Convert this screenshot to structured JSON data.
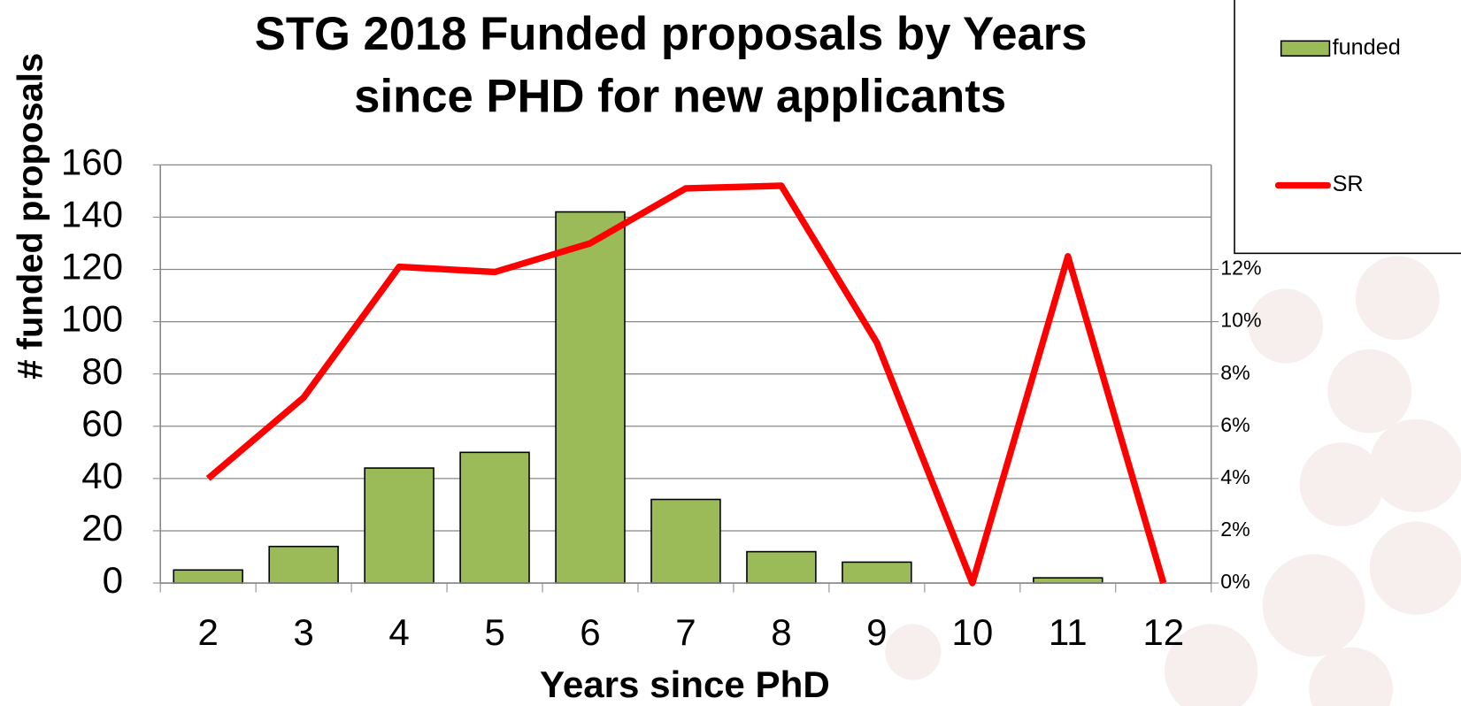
{
  "chart_data": {
    "type": "bar",
    "title": "STG 2018 Funded proposals by Years",
    "subtitle": "since PHD for new applicants",
    "x_label": "Years since PhD",
    "y_label": "# funded proposals",
    "categories": [
      "2",
      "3",
      "4",
      "5",
      "6",
      "7",
      "8",
      "9",
      "10",
      "11",
      "12"
    ],
    "series": [
      {
        "name": "funded",
        "type": "bar",
        "color": "#9bbb59",
        "values": [
          5,
          14,
          44,
          50,
          142,
          32,
          12,
          8,
          0,
          2,
          0
        ]
      },
      {
        "name": "SR",
        "type": "line",
        "axis": "y2",
        "color": "#ff0000",
        "values": [
          4.0,
          7.1,
          12.1,
          11.9,
          13.0,
          15.1,
          15.2,
          9.2,
          0,
          12.5,
          0
        ]
      }
    ],
    "ylim": [
      0,
      160
    ],
    "yticks": [
      0,
      20,
      40,
      60,
      80,
      100,
      120,
      140,
      160
    ],
    "y2lim": [
      0,
      16
    ],
    "y2ticks": [
      {
        "value": 0,
        "label": "0%"
      },
      {
        "value": 2,
        "label": "2%"
      },
      {
        "value": 4,
        "label": "4%"
      },
      {
        "value": 6,
        "label": "6%"
      },
      {
        "value": 8,
        "label": "8%"
      },
      {
        "value": 10,
        "label": "10%"
      },
      {
        "value": 12,
        "label": "12%"
      }
    ],
    "grid": true,
    "legend": "top-right"
  }
}
